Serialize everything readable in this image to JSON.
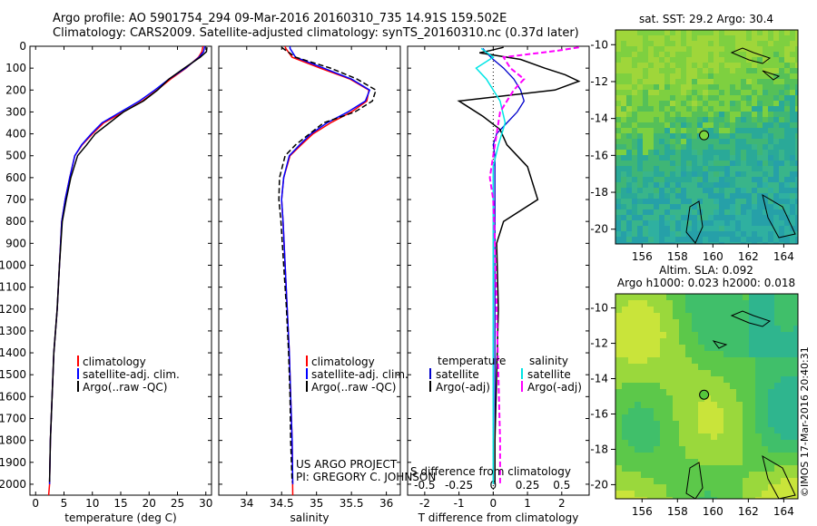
{
  "header": {
    "line1": "Argo profile: AO 5901754_294 09-Mar-2016 20160310_735 14.91S 159.502E",
    "line2": "Climatology: CARS2009. Satellite-adjusted climatology: synTS_20160310.nc (0.37d later)"
  },
  "map_top_title": "sat. SST: 29.2 Argo: 30.4",
  "map_bottom_title1": "Altim. SLA: 0.092",
  "map_bottom_title2": "Argo h1000: 0.023 h2000: 0.018",
  "credit": "©IMOS 17-Mar-2016 20:40:31",
  "project_line1": "US ARGO PROJECT",
  "project_line2": "PI: GREGORY C. JOHNSON",
  "colors": {
    "climatology": "#ff0000",
    "satellite_adj": "#0000ff",
    "argo": "#000000",
    "t_satellite": "#0000cc",
    "s_satellite": "#00e5e5",
    "s_argo": "#ff00ff"
  },
  "chart_data": [
    {
      "type": "line",
      "panel": "temperature",
      "xlabel": "temperature (deg C)",
      "ylabel": "",
      "xlim": [
        -1,
        31
      ],
      "ylim": [
        2050,
        0
      ],
      "xticks": [
        0,
        5,
        10,
        15,
        20,
        25,
        30
      ],
      "yticks": [
        0,
        100,
        200,
        300,
        400,
        500,
        600,
        700,
        800,
        900,
        1000,
        1100,
        1200,
        1300,
        1400,
        1500,
        1600,
        1700,
        1800,
        1900,
        2000
      ],
      "legend": [
        "climatology",
        "satellite-adj. clim.",
        "Argo(..raw -QC)"
      ],
      "series": [
        {
          "name": "climatology",
          "x": [
            29.5,
            29.3,
            28.7,
            26.5,
            23.8,
            21.4,
            18.8,
            15.5,
            12.0,
            10.0,
            8.2,
            6.9,
            6.0,
            5.2,
            4.6,
            4.2,
            3.8,
            3.2,
            2.9,
            2.6,
            2.45,
            2.3
          ],
          "y": [
            0,
            25,
            50,
            100,
            150,
            200,
            250,
            300,
            350,
            400,
            450,
            500,
            600,
            700,
            800,
            1000,
            1200,
            1400,
            1600,
            1800,
            2000,
            2050
          ]
        },
        {
          "name": "satellite-adj. clim.",
          "x": [
            29.8,
            29.6,
            28.8,
            26.4,
            23.5,
            21.0,
            18.3,
            15.0,
            11.7,
            9.8,
            8.1,
            6.9,
            6.0,
            5.2,
            4.6,
            4.2,
            3.8,
            3.2,
            2.9,
            2.6,
            2.45
          ],
          "y": [
            0,
            25,
            50,
            100,
            150,
            200,
            250,
            300,
            350,
            400,
            450,
            500,
            600,
            700,
            800,
            1000,
            1200,
            1400,
            1600,
            1800,
            2000
          ]
        },
        {
          "name": "Argo(..raw -QC)",
          "x": [
            30.2,
            30.1,
            29.0,
            26.2,
            23.5,
            21.5,
            19.0,
            15.5,
            13.0,
            10.5,
            9.0,
            7.4,
            6.2,
            5.4,
            4.7,
            4.2,
            3.8,
            3.2,
            2.9,
            2.6,
            2.45
          ],
          "y": [
            5,
            25,
            50,
            100,
            150,
            200,
            250,
            300,
            350,
            400,
            450,
            500,
            600,
            700,
            800,
            1000,
            1200,
            1400,
            1600,
            1800,
            1990
          ]
        }
      ]
    },
    {
      "type": "line",
      "panel": "salinity",
      "xlabel": "salinity",
      "xlim": [
        33.6,
        36.2
      ],
      "ylim": [
        2050,
        0
      ],
      "xticks": [
        34,
        34.5,
        35,
        35.5,
        36
      ],
      "legend": [
        "climatology",
        "satellite-adj. clim.",
        "Argo(..raw -QC)"
      ],
      "series": [
        {
          "name": "climatology",
          "x": [
            34.55,
            34.56,
            34.65,
            35.05,
            35.48,
            35.75,
            35.72,
            35.5,
            35.2,
            34.95,
            34.78,
            34.62,
            34.53,
            34.5,
            34.52,
            34.55,
            34.58,
            34.61,
            34.63,
            34.65,
            34.66
          ],
          "y": [
            0,
            10,
            50,
            100,
            150,
            200,
            250,
            300,
            350,
            400,
            450,
            500,
            600,
            700,
            800,
            1000,
            1200,
            1400,
            1600,
            1800,
            2050
          ]
        },
        {
          "name": "satellite-adj. clim.",
          "x": [
            34.62,
            34.62,
            34.7,
            35.1,
            35.5,
            35.76,
            35.7,
            35.45,
            35.15,
            34.92,
            34.76,
            34.61,
            34.53,
            34.5,
            34.52,
            34.55,
            34.58,
            34.61,
            34.63,
            34.65,
            34.66
          ],
          "y": [
            0,
            10,
            50,
            100,
            150,
            200,
            250,
            300,
            350,
            400,
            450,
            500,
            600,
            700,
            800,
            1000,
            1200,
            1400,
            1600,
            1800,
            2000
          ]
        },
        {
          "name": "Argo(..raw -QC)",
          "x": [
            34.5,
            34.52,
            34.7,
            35.2,
            35.58,
            35.85,
            35.8,
            35.55,
            35.1,
            34.9,
            34.7,
            34.55,
            34.47,
            34.46,
            34.49,
            34.53,
            34.57,
            34.6,
            34.62,
            34.63,
            34.65
          ],
          "y": [
            5,
            10,
            50,
            100,
            150,
            200,
            250,
            300,
            350,
            400,
            450,
            500,
            600,
            700,
            800,
            1000,
            1200,
            1400,
            1600,
            1800,
            1990
          ]
        }
      ]
    },
    {
      "type": "line",
      "panel": "difference",
      "xlabel": "T difference from climatology",
      "xlabel_top": "S difference from climatology",
      "xlim": [
        -2.5,
        2.8
      ],
      "ylim": [
        2050,
        0
      ],
      "xticks": [
        -2,
        -1,
        0,
        1,
        2
      ],
      "xticks_s": [
        -0.5,
        -0.25,
        0,
        0.25,
        0.5
      ],
      "legend_headers": [
        "temperature",
        "salinity"
      ],
      "legend": [
        "satellite",
        "Argo(-adj)",
        "satellite",
        "Argo(-adj)"
      ],
      "series": [
        {
          "name": "temperature satellite",
          "x": [
            -0.3,
            -0.2,
            0.0,
            0.3,
            0.6,
            0.8,
            0.9,
            0.7,
            0.4,
            0.1,
            0.0,
            0.05,
            0.05,
            0.05,
            0.05,
            0.05
          ],
          "y": [
            10,
            30,
            60,
            100,
            150,
            200,
            250,
            300,
            350,
            400,
            450,
            500,
            600,
            800,
            1200,
            2000
          ]
        },
        {
          "name": "temperature Argo(-adj)",
          "x": [
            0.3,
            -0.1,
            -0.4,
            0.8,
            1.5,
            2.1,
            2.5,
            1.8,
            -1.0,
            -0.3,
            0.2,
            0.4,
            1.0,
            1.3,
            0.3,
            0.1,
            0.15,
            0.1,
            0.05,
            0.05
          ],
          "y": [
            5,
            20,
            30,
            60,
            100,
            130,
            160,
            200,
            250,
            320,
            380,
            450,
            550,
            700,
            800,
            900,
            1200,
            1500,
            1800,
            2000
          ]
        },
        {
          "name": "salinity satellite",
          "x": [
            -0.35,
            0.0,
            -0.5,
            -0.2,
            0.2,
            0.35,
            0.15,
            0.0,
            0.0,
            0.0,
            0.0,
            0.0
          ],
          "y": [
            10,
            50,
            100,
            150,
            250,
            350,
            450,
            550,
            700,
            1000,
            1500,
            2000
          ]
        },
        {
          "name": "salinity Argo(-adj)",
          "x": [
            2.5,
            1.9,
            0.3,
            0.5,
            0.9,
            0.6,
            0.2,
            0.1,
            0.0,
            -0.1,
            0.0,
            0.05,
            0.1,
            0.15,
            0.2,
            0.2
          ],
          "y": [
            5,
            20,
            50,
            100,
            150,
            200,
            300,
            400,
            500,
            600,
            700,
            900,
            1200,
            1500,
            1800,
            2000
          ]
        }
      ]
    },
    {
      "type": "heatmap",
      "panel": "sat. SST map",
      "xticks": [
        156,
        158,
        160,
        162,
        164
      ],
      "yticks": [
        -10,
        -12,
        -14,
        -16,
        -18,
        -20
      ],
      "xlim": [
        154.5,
        164.8
      ],
      "ylim": [
        -20.8,
        -9.2
      ],
      "argo_position": {
        "lon": 159.502,
        "lat": -14.91
      }
    },
    {
      "type": "heatmap",
      "panel": "Altim. SLA map",
      "xticks": [
        156,
        158,
        160,
        162,
        164
      ],
      "yticks": [
        -10,
        -12,
        -14,
        -16,
        -18,
        -20
      ],
      "xlim": [
        154.5,
        164.8
      ],
      "ylim": [
        -20.8,
        -9.2
      ],
      "argo_position": {
        "lon": 159.502,
        "lat": -14.91
      }
    }
  ]
}
